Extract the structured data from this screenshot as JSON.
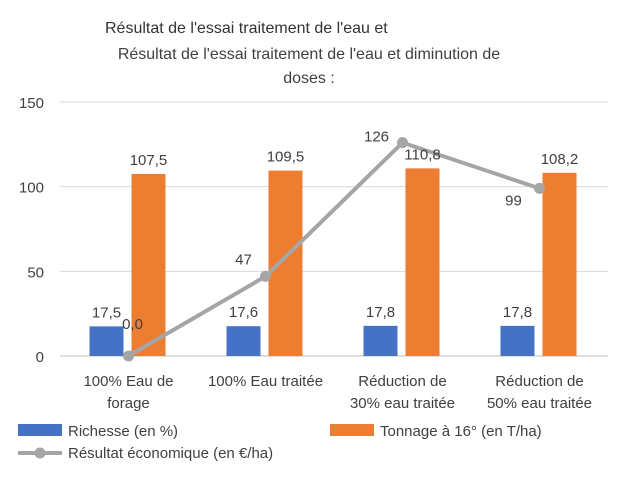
{
  "chart_data": {
    "type": "bar",
    "header_fragment": "Résultat de l'essai traitement de l'eau et",
    "title_line1": "Résultat de l'essai traitement de l'eau et diminution de",
    "title_line2": "doses :",
    "ylim": [
      0,
      150
    ],
    "yticks": [
      "0",
      "50",
      "100",
      "150"
    ],
    "categories": [
      [
        "100% Eau de",
        "forage"
      ],
      [
        "100% Eau traitée"
      ],
      [
        "Réduction de",
        "30% eau traitée"
      ],
      [
        "Réduction de",
        "50% eau traitée"
      ]
    ],
    "series": [
      {
        "name": "Richesse (en %)",
        "kind": "bar",
        "color": "#4472C4",
        "values": [
          17.5,
          17.6,
          17.8,
          17.8
        ],
        "labels": [
          "17,5",
          "17,6",
          "17,8",
          "17,8"
        ]
      },
      {
        "name": "Tonnage à 16° (en T/ha)",
        "kind": "bar",
        "color": "#ED7D31",
        "values": [
          107.5,
          109.5,
          110.8,
          108.2
        ],
        "labels": [
          "107,5",
          "109,5",
          "110,8",
          "108,2"
        ]
      },
      {
        "name": "Résultat économique (en €/ha)",
        "kind": "line",
        "color": "#A5A5A5",
        "values": [
          0,
          47,
          126,
          99
        ],
        "labels": [
          "0,0",
          "47",
          "126",
          "99"
        ]
      }
    ],
    "legend_position": "bottom",
    "grid": true
  }
}
